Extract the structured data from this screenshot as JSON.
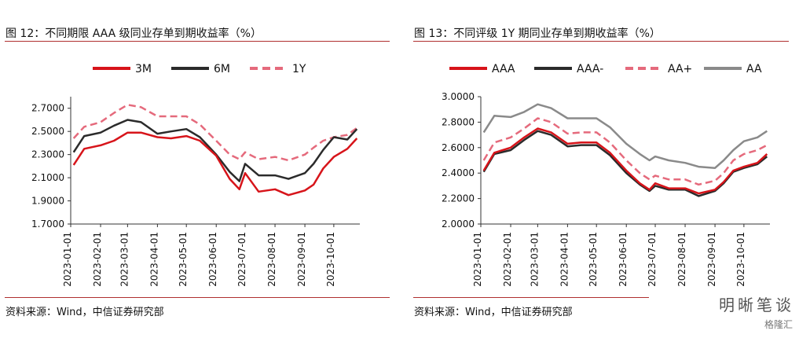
{
  "left": {
    "title": "图 12：不同期限 AAA 级同业存单到期收益率（%）",
    "source": "资料来源：Wind，中信证券研究部"
  },
  "right": {
    "title": "图 13：不同评级 1Y 期同业存单到期收益率（%）",
    "source": "资料来源：Wind，中信证券研究部"
  },
  "watermark": {
    "name": "明晰笔谈",
    "platform": "格隆汇"
  },
  "chart_data": [
    {
      "type": "line",
      "xtick_labels": [
        "2023-01-01",
        "2023-02-01",
        "2023-03-01",
        "2023-04-01",
        "2023-05-01",
        "2023-06-01",
        "2023-07-01",
        "2023-08-01",
        "2023-09-01",
        "2023-10-01"
      ],
      "ytick_labels": [
        "1.7000",
        "1.9000",
        "2.1000",
        "2.3000",
        "2.5000",
        "2.7000"
      ],
      "ylim": [
        1.7,
        2.8
      ],
      "grid": false,
      "legend": "top",
      "series": [
        {
          "name": "3M",
          "color": "#d7141a",
          "dash": false,
          "x": [
            "2023-01-04",
            "2023-01-15",
            "2023-02-01",
            "2023-02-15",
            "2023-03-01",
            "2023-03-15",
            "2023-04-01",
            "2023-04-15",
            "2023-05-01",
            "2023-05-15",
            "2023-06-01",
            "2023-06-15",
            "2023-06-25",
            "2023-07-01",
            "2023-07-15",
            "2023-08-01",
            "2023-08-15",
            "2023-09-01",
            "2023-09-10",
            "2023-09-20",
            "2023-10-01",
            "2023-10-15",
            "2023-10-25"
          ],
          "values": [
            2.21,
            2.35,
            2.38,
            2.42,
            2.49,
            2.49,
            2.45,
            2.44,
            2.46,
            2.42,
            2.29,
            2.09,
            2.0,
            2.14,
            1.98,
            2.0,
            1.95,
            1.99,
            2.04,
            2.18,
            2.28,
            2.35,
            2.44
          ]
        },
        {
          "name": "6M",
          "color": "#2b2b2b",
          "dash": false,
          "x": [
            "2023-01-04",
            "2023-01-15",
            "2023-02-01",
            "2023-02-15",
            "2023-03-01",
            "2023-03-15",
            "2023-04-01",
            "2023-04-15",
            "2023-05-01",
            "2023-05-15",
            "2023-06-01",
            "2023-06-15",
            "2023-06-25",
            "2023-07-01",
            "2023-07-15",
            "2023-08-01",
            "2023-08-15",
            "2023-09-01",
            "2023-09-10",
            "2023-09-20",
            "2023-10-01",
            "2023-10-15",
            "2023-10-25"
          ],
          "values": [
            2.32,
            2.46,
            2.49,
            2.55,
            2.6,
            2.58,
            2.48,
            2.5,
            2.52,
            2.45,
            2.3,
            2.15,
            2.07,
            2.22,
            2.12,
            2.12,
            2.09,
            2.14,
            2.22,
            2.34,
            2.45,
            2.43,
            2.52
          ]
        },
        {
          "name": "1Y",
          "color": "#e56a7c",
          "dash": true,
          "x": [
            "2023-01-04",
            "2023-01-15",
            "2023-02-01",
            "2023-02-15",
            "2023-03-01",
            "2023-03-15",
            "2023-04-01",
            "2023-04-15",
            "2023-05-01",
            "2023-05-15",
            "2023-06-01",
            "2023-06-15",
            "2023-06-25",
            "2023-07-01",
            "2023-07-15",
            "2023-08-01",
            "2023-08-15",
            "2023-09-01",
            "2023-09-10",
            "2023-09-20",
            "2023-10-01",
            "2023-10-15",
            "2023-10-25"
          ],
          "values": [
            2.44,
            2.54,
            2.58,
            2.66,
            2.73,
            2.71,
            2.63,
            2.63,
            2.63,
            2.56,
            2.42,
            2.3,
            2.26,
            2.32,
            2.26,
            2.28,
            2.25,
            2.3,
            2.36,
            2.42,
            2.45,
            2.47,
            2.53
          ]
        }
      ]
    },
    {
      "type": "line",
      "xtick_labels": [
        "2023-01-01",
        "2023-02-01",
        "2023-03-01",
        "2023-04-01",
        "2023-05-01",
        "2023-06-01",
        "2023-07-01",
        "2023-08-01",
        "2023-09-01",
        "2023-10-01"
      ],
      "ytick_labels": [
        "2.0000",
        "2.2000",
        "2.4000",
        "2.6000",
        "2.8000",
        "3.0000"
      ],
      "ylim": [
        2.0,
        3.0
      ],
      "grid": false,
      "legend": "top",
      "series": [
        {
          "name": "AAA",
          "color": "#d7141a",
          "dash": false,
          "x": [
            "2023-01-04",
            "2023-01-15",
            "2023-02-01",
            "2023-02-15",
            "2023-03-01",
            "2023-03-15",
            "2023-04-01",
            "2023-04-15",
            "2023-05-01",
            "2023-05-15",
            "2023-06-01",
            "2023-06-15",
            "2023-06-25",
            "2023-07-01",
            "2023-07-15",
            "2023-08-01",
            "2023-08-15",
            "2023-09-01",
            "2023-09-10",
            "2023-09-20",
            "2023-10-01",
            "2023-10-15",
            "2023-10-25"
          ],
          "values": [
            2.42,
            2.56,
            2.6,
            2.68,
            2.75,
            2.72,
            2.63,
            2.64,
            2.64,
            2.56,
            2.42,
            2.32,
            2.27,
            2.32,
            2.28,
            2.28,
            2.24,
            2.27,
            2.33,
            2.42,
            2.45,
            2.48,
            2.55
          ]
        },
        {
          "name": "AAA-",
          "color": "#2b2b2b",
          "dash": false,
          "x": [
            "2023-01-04",
            "2023-01-15",
            "2023-02-01",
            "2023-02-15",
            "2023-03-01",
            "2023-03-15",
            "2023-04-01",
            "2023-04-15",
            "2023-05-01",
            "2023-05-15",
            "2023-06-01",
            "2023-06-15",
            "2023-06-25",
            "2023-07-01",
            "2023-07-15",
            "2023-08-01",
            "2023-08-15",
            "2023-09-01",
            "2023-09-10",
            "2023-09-20",
            "2023-10-01",
            "2023-10-15",
            "2023-10-25"
          ],
          "values": [
            2.41,
            2.55,
            2.58,
            2.66,
            2.73,
            2.7,
            2.61,
            2.62,
            2.62,
            2.54,
            2.4,
            2.31,
            2.26,
            2.3,
            2.27,
            2.27,
            2.22,
            2.26,
            2.32,
            2.41,
            2.44,
            2.47,
            2.53
          ]
        },
        {
          "name": "AA+",
          "color": "#e56a7c",
          "dash": true,
          "x": [
            "2023-01-04",
            "2023-01-15",
            "2023-02-01",
            "2023-02-15",
            "2023-03-01",
            "2023-03-15",
            "2023-04-01",
            "2023-04-15",
            "2023-05-01",
            "2023-05-15",
            "2023-06-01",
            "2023-06-15",
            "2023-06-25",
            "2023-07-01",
            "2023-07-15",
            "2023-08-01",
            "2023-08-15",
            "2023-09-01",
            "2023-09-10",
            "2023-09-20",
            "2023-10-01",
            "2023-10-15",
            "2023-10-25"
          ],
          "values": [
            2.5,
            2.64,
            2.68,
            2.75,
            2.83,
            2.8,
            2.71,
            2.72,
            2.72,
            2.64,
            2.5,
            2.4,
            2.35,
            2.38,
            2.35,
            2.35,
            2.31,
            2.34,
            2.4,
            2.5,
            2.55,
            2.58,
            2.62
          ]
        },
        {
          "name": "AA",
          "color": "#8a8a8a",
          "dash": false,
          "x": [
            "2023-01-04",
            "2023-01-15",
            "2023-02-01",
            "2023-02-15",
            "2023-03-01",
            "2023-03-15",
            "2023-04-01",
            "2023-04-15",
            "2023-05-01",
            "2023-05-15",
            "2023-06-01",
            "2023-06-15",
            "2023-06-25",
            "2023-07-01",
            "2023-07-15",
            "2023-08-01",
            "2023-08-15",
            "2023-09-01",
            "2023-09-10",
            "2023-09-20",
            "2023-10-01",
            "2023-10-15",
            "2023-10-25"
          ],
          "values": [
            2.72,
            2.85,
            2.84,
            2.88,
            2.94,
            2.91,
            2.83,
            2.83,
            2.83,
            2.76,
            2.63,
            2.55,
            2.5,
            2.53,
            2.5,
            2.48,
            2.45,
            2.44,
            2.5,
            2.58,
            2.65,
            2.68,
            2.73
          ]
        }
      ]
    }
  ]
}
